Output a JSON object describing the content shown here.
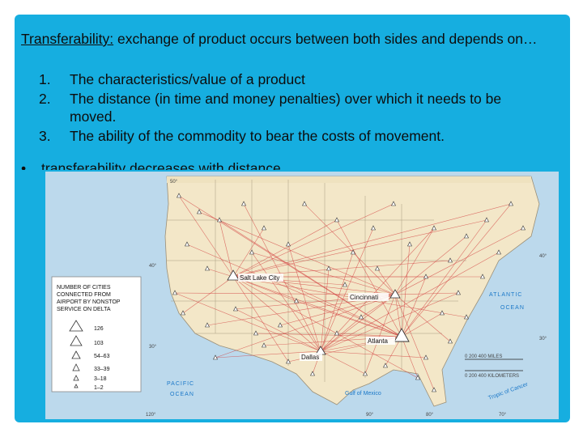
{
  "definition": {
    "term": "Transferability:",
    "text": " exchange of product occurs between both sides and depends on…"
  },
  "list": [
    {
      "num": "1.",
      "text": "The characteristics/value of a product"
    },
    {
      "num": "2.",
      "text": "The distance (in time and money penalties) over which it needs to be"
    },
    {
      "num": "",
      "text": "moved."
    },
    {
      "num": "3.",
      "text": "The ability of the commodity to bear the costs of movement."
    }
  ],
  "bullet": {
    "symbol": "•",
    "text": "transferability decreases with distance"
  },
  "map": {
    "legend": {
      "title_lines": [
        "NUMBER OF CITIES",
        "CONNECTED FROM",
        "AIRPORT BY NONSTOP",
        "SERVICE ON DELTA"
      ],
      "items": [
        "126",
        "103",
        "54–63",
        "33–39",
        "3–18",
        "1–2"
      ]
    },
    "cities": {
      "salt_lake_city": "Salt Lake City",
      "cincinnati": "Cincinnati",
      "atlanta": "Atlanta",
      "dallas": "Dallas"
    },
    "oceans": {
      "atlantic_1": "ATLANTIC",
      "atlantic_2": "OCEAN",
      "pacific_1": "PACIFIC",
      "pacific_2": "OCEAN",
      "gulf": "Gulf of Mexico",
      "tropic": "Tropic of Cancer"
    },
    "scale": {
      "miles_label": "0    200  400 MILES",
      "km_label": "0   200  400 KILOMETERS"
    },
    "coords": {
      "lat50": "50°",
      "lat40_w": "40°",
      "lat40_e": "40°",
      "lat30_w": "30°",
      "lat30_e": "30°",
      "lon120": "120°",
      "lon90": "90°",
      "lon80": "80°",
      "lon70": "70°"
    },
    "colors": {
      "land": "#f3e7c8",
      "water": "#bcd9ec",
      "routes": "#d23c3c"
    }
  }
}
